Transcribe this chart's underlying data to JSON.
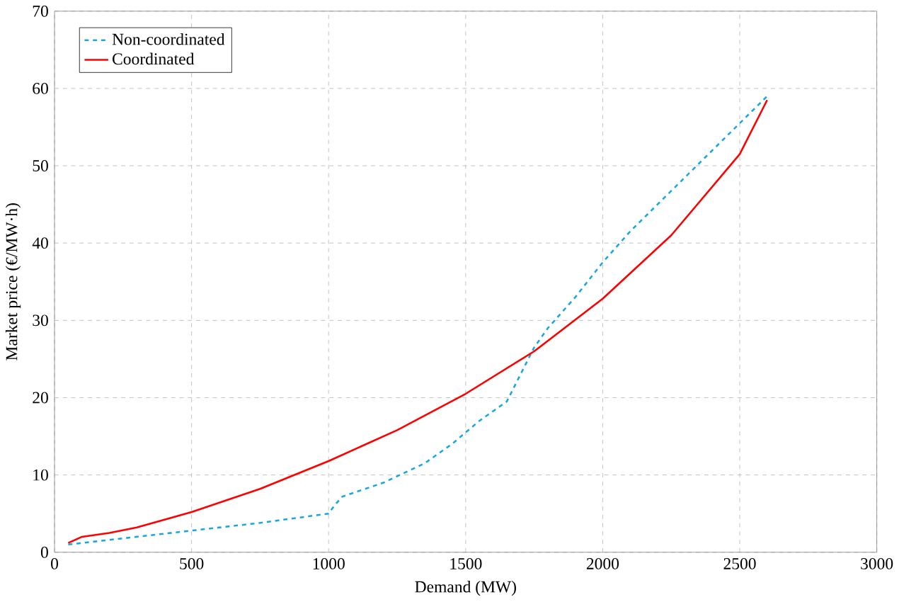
{
  "chart_data": {
    "type": "line",
    "xlabel": "Demand (MW)",
    "ylabel": "Market price (€/MW·h)",
    "xlim": [
      0,
      3000
    ],
    "xticks": [
      0,
      500,
      1000,
      1500,
      2000,
      2500,
      3000
    ],
    "ylim": [
      0,
      70
    ],
    "yticks": [
      0,
      10,
      20,
      30,
      40,
      50,
      60,
      70
    ],
    "grid": true,
    "legend": "top left",
    "marker": "none",
    "series": [
      {
        "name": "Non-coordinated",
        "color": "#1aa7e0",
        "line_style": "dashed",
        "x": [
          50,
          250,
          500,
          750,
          1000,
          1020,
          1050,
          1200,
          1350,
          1450,
          1500,
          1550,
          1650,
          1700,
          1750,
          1800,
          1900,
          2000,
          2100,
          2200,
          2300,
          2400,
          2500,
          2600
        ],
        "values": [
          1,
          1.8,
          2.8,
          3.8,
          5,
          6,
          7.2,
          9,
          11.5,
          14,
          15.5,
          17,
          19.5,
          23,
          26.5,
          29,
          33,
          37.5,
          41.5,
          45,
          48.5,
          52,
          55.5,
          59
        ]
      },
      {
        "name": "Coordinated",
        "color": "#ff0000",
        "line_style": "solid",
        "x": [
          50,
          100,
          200,
          300,
          500,
          750,
          1000,
          1250,
          1500,
          1750,
          2000,
          2250,
          2500,
          2600
        ],
        "values": [
          1.2,
          2,
          2.5,
          3.2,
          5.2,
          8.2,
          11.8,
          15.8,
          20.5,
          26,
          32.8,
          41,
          51.5,
          58.5
        ]
      }
    ]
  }
}
